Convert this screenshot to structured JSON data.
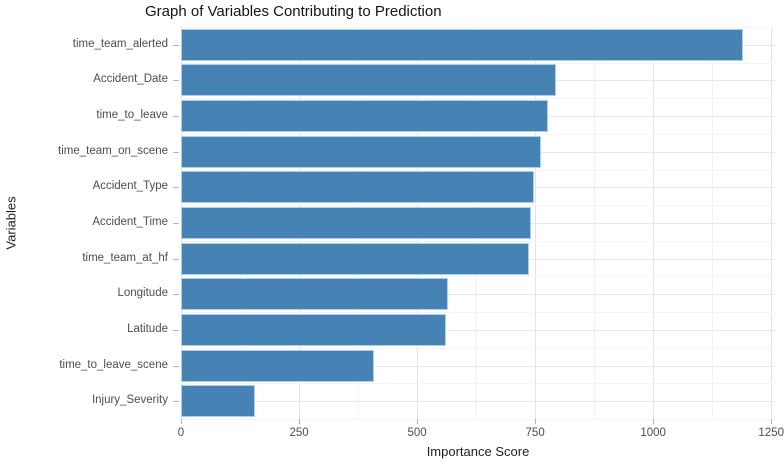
{
  "chart_data": {
    "type": "bar",
    "orientation": "horizontal",
    "title": "Graph of Variables Contributing to Prediction",
    "xlabel": "Importance Score",
    "ylabel": "Variables",
    "categories": [
      "time_team_alerted",
      "Accident_Date",
      "time_to_leave",
      "time_team_on_scene",
      "Accident_Type",
      "Accident_Time",
      "time_team_at_hf",
      "Longitude",
      "Latitude",
      "time_to_leave_scene",
      "Injury_Severity"
    ],
    "values": [
      1190,
      795,
      777,
      762,
      747,
      741,
      737,
      565,
      562,
      408,
      156
    ],
    "xlim": [
      0,
      1258
    ],
    "x_major_ticks": [
      0,
      250,
      500,
      750,
      1000,
      1250
    ],
    "x_minor_ticks": [
      125,
      375,
      625,
      875,
      1125
    ],
    "grid": true,
    "legend": "none",
    "colors": {
      "bar_fill": "#4682b4",
      "bar_border": "#aad1e6",
      "grid_major": "#e3e3e3",
      "grid_minor": "#f2f2f2",
      "tick": "#b3b3b3",
      "tick_label": "#4d4d4d",
      "title_text": "#141414"
    }
  }
}
